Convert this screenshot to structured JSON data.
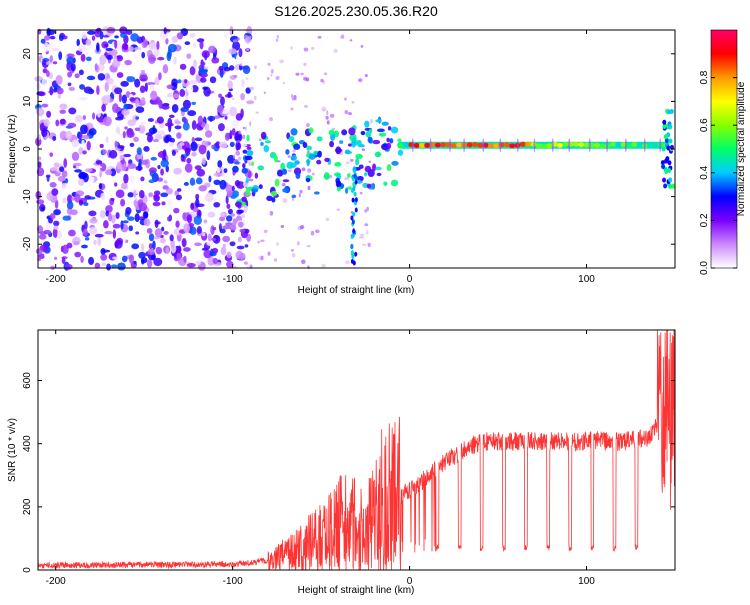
{
  "figure": {
    "title": "S126.2025.230.05.36.R20"
  },
  "chart_data": [
    {
      "type": "heatmap",
      "title": "S126.2025.230.05.36.R20",
      "xlabel": "Height of straight line (km)",
      "ylabel": "Frequency (Hz)",
      "xlim": [
        -210,
        150
      ],
      "ylim": [
        -25,
        25
      ],
      "xticks": [
        -200,
        -100,
        0,
        100
      ],
      "yticks": [
        -20,
        -10,
        0,
        10,
        20
      ],
      "colorbar": {
        "label": "Normalized spectral amplitude",
        "range": [
          0.0,
          1.0
        ],
        "ticks": [
          0.0,
          0.2,
          0.4,
          0.6,
          0.8
        ],
        "colors": [
          "#ffffff",
          "#cc88ff",
          "#7a00ff",
          "#0000ff",
          "#00ccff",
          "#00ff66",
          "#88ff00",
          "#ffff00",
          "#ff9900",
          "#ff0000",
          "#ff0066"
        ]
      },
      "features": [
        {
          "description": "carrier signal",
          "x_range": [
            -5,
            145
          ],
          "frequency": 0.8,
          "peak_amplitude": 0.95
        },
        {
          "description": "diffuse noise region",
          "x_range": [
            -210,
            -90
          ],
          "frequency_range": [
            -25,
            25
          ],
          "amplitude_range": [
            0.0,
            0.35
          ]
        }
      ]
    },
    {
      "type": "line",
      "xlabel": "Height of straight line (km)",
      "ylabel": "SNR (10 * v/v)",
      "xlim": [
        -210,
        150
      ],
      "ylim": [
        0,
        760
      ],
      "xticks": [
        -200,
        -100,
        0,
        100
      ],
      "yticks": [
        0,
        200,
        400,
        600
      ],
      "series": [
        {
          "name": "SNR",
          "color": "#ff3333",
          "x": [
            -210,
            -190,
            -170,
            -150,
            -130,
            -110,
            -95,
            -85,
            -75,
            -65,
            -55,
            -45,
            -35,
            -25,
            -15,
            -5,
            5,
            15,
            25,
            35,
            45,
            55,
            65,
            75,
            85,
            95,
            105,
            115,
            125,
            135,
            145,
            150
          ],
          "values": [
            15,
            15,
            16,
            17,
            16,
            18,
            20,
            25,
            40,
            60,
            90,
            120,
            160,
            120,
            220,
            240,
            270,
            320,
            360,
            395,
            410,
            405,
            410,
            405,
            410,
            405,
            410,
            405,
            410,
            420,
            500,
            450
          ]
        }
      ]
    }
  ]
}
